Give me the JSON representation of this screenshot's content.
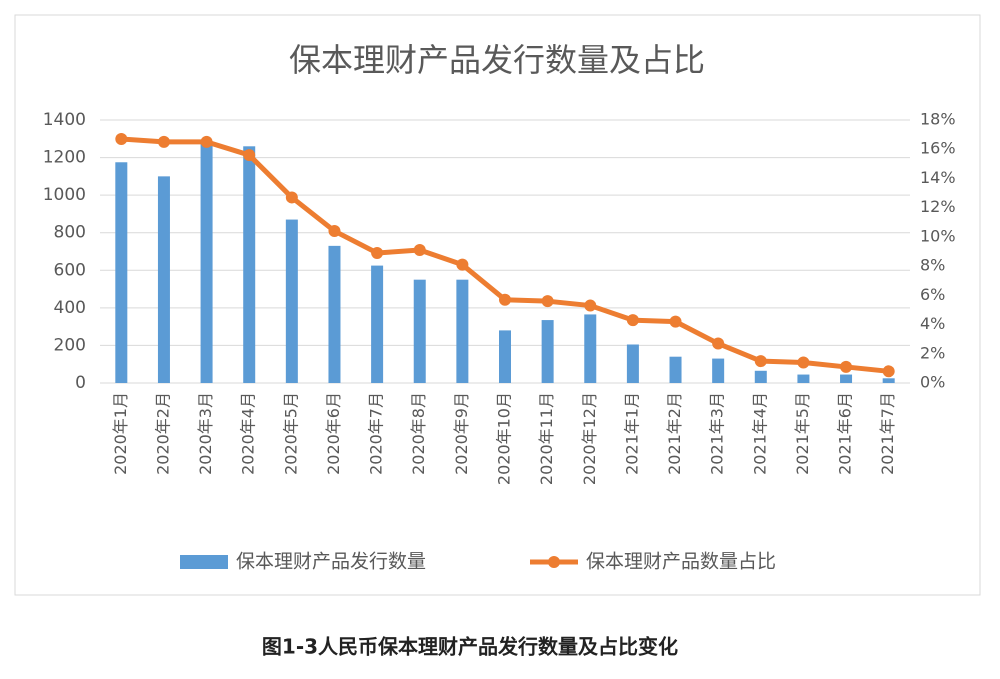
{
  "chart_data": {
    "type": "bar-line",
    "title": "保本理财产品发行数量及占比",
    "caption": "图1-3人民币保本理财产品发行数量及占比变化",
    "categories": [
      "2020年1月",
      "2020年2月",
      "2020年3月",
      "2020年4月",
      "2020年5月",
      "2020年6月",
      "2020年7月",
      "2020年8月",
      "2020年9月",
      "2020年10月",
      "2020年11月",
      "2020年12月",
      "2021年1月",
      "2021年2月",
      "2021年3月",
      "2021年4月",
      "2021年5月",
      "2021年6月",
      "2021年7月"
    ],
    "series": [
      {
        "name": "保本理财产品发行数量",
        "type": "bar",
        "color": "#5b9bd5",
        "values": [
          1175,
          1100,
          1280,
          1260,
          870,
          730,
          625,
          550,
          550,
          280,
          335,
          365,
          205,
          140,
          130,
          65,
          45,
          45,
          25
        ]
      },
      {
        "name": "保本理财产品数量占比",
        "type": "line",
        "axis": "y2",
        "color": "#ed7d31",
        "values": [
          16.7,
          16.5,
          16.5,
          15.6,
          12.7,
          10.4,
          8.9,
          9.1,
          8.1,
          5.7,
          5.6,
          5.3,
          4.3,
          4.2,
          2.7,
          1.5,
          1.4,
          1.1,
          0.8
        ]
      }
    ],
    "ylim": [
      0,
      1400
    ],
    "yticks": [
      0,
      200,
      400,
      600,
      800,
      1000,
      1200,
      1400
    ],
    "y2lim": [
      0,
      18
    ],
    "y2ticks": [
      {
        "value": 0,
        "label": "0%"
      },
      {
        "value": 2,
        "label": "2%"
      },
      {
        "value": 4,
        "label": "4%"
      },
      {
        "value": 6,
        "label": "6%"
      },
      {
        "value": 8,
        "label": "8%"
      },
      {
        "value": 10,
        "label": "10%"
      },
      {
        "value": 12,
        "label": "12%"
      },
      {
        "value": 14,
        "label": "14%"
      },
      {
        "value": 16,
        "label": "16%"
      },
      {
        "value": 18,
        "label": "18%"
      }
    ],
    "grid": true
  }
}
